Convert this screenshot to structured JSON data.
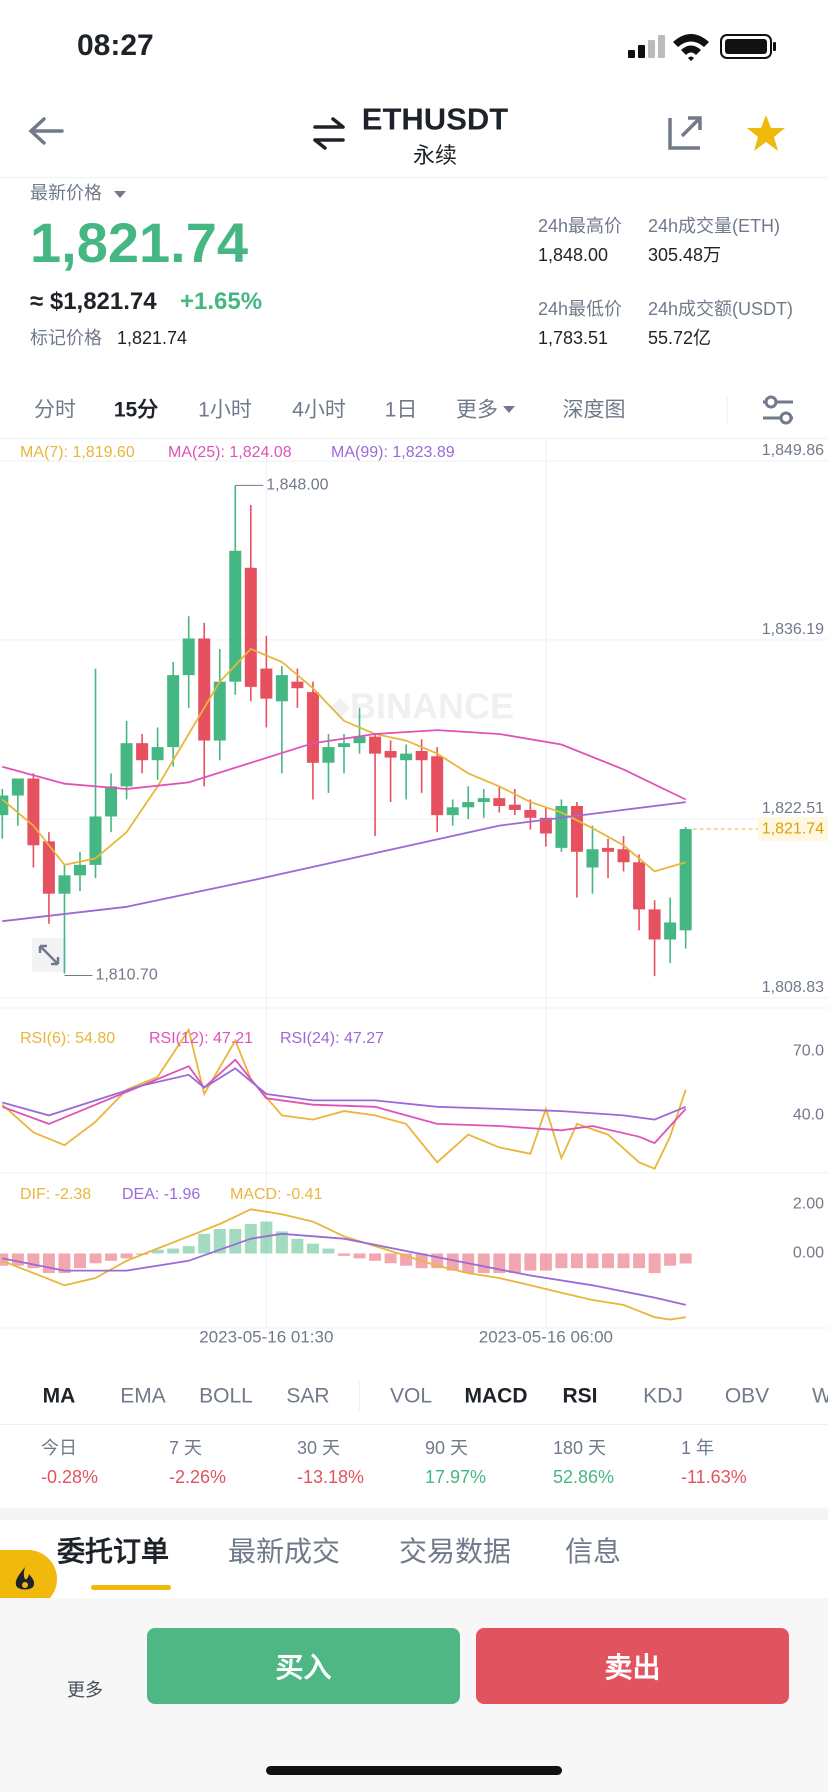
{
  "status": {
    "time": "08:27"
  },
  "header": {
    "symbol": "ETHUSDT",
    "subtitle": "永续"
  },
  "price": {
    "label": "最新价格",
    "last": "1,821.74",
    "usd": "≈ $1,821.74",
    "change": "+1.65%",
    "mark_label": "标记价格",
    "mark": "1,821.74"
  },
  "stats": [
    {
      "label": "24h最高价",
      "value": "1,848.00"
    },
    {
      "label": "24h成交量(ETH)",
      "value": "305.48万"
    },
    {
      "label": "24h最低价",
      "value": "1,783.51"
    },
    {
      "label": "24h成交额(USDT)",
      "value": "55.72亿"
    }
  ],
  "intervals": [
    "分时",
    "15分",
    "1小时",
    "4小时",
    "1日",
    "更多",
    "深度图"
  ],
  "watermark": "BINANCE",
  "chart_data": [
    {
      "type": "candlestick",
      "xlim": [
        -0.15,
        48.4
      ],
      "xticks": [
        {
          "value": 17,
          "label": "2023-05-16 01:30"
        },
        {
          "value": 35,
          "label": "2023-05-16 06:00"
        }
      ],
      "ylim": [
        1808.83,
        1849.86
      ],
      "yticks": [
        {
          "value": 1849.86,
          "label": "1,849.86"
        },
        {
          "value": 1836.19,
          "label": "1,836.19"
        },
        {
          "value": 1822.51,
          "label": "1,822.51"
        },
        {
          "value": 1808.83,
          "label": "1,808.83"
        }
      ],
      "grid": true,
      "up_color": "#45b782",
      "down_color": "#e6505f",
      "ohlc": [
        [
          1822.8,
          1824.8,
          1821.0,
          1824.3
        ],
        [
          1824.3,
          1825.6,
          1822.0,
          1825.6
        ],
        [
          1825.6,
          1826.0,
          1818.8,
          1820.5
        ],
        [
          1820.8,
          1821.5,
          1814.5,
          1816.8
        ],
        [
          1816.8,
          1819.0,
          1810.7,
          1818.2
        ],
        [
          1818.2,
          1820.0,
          1817.0,
          1819.0
        ],
        [
          1819.0,
          1834.0,
          1818.0,
          1822.7
        ],
        [
          1822.7,
          1826.0,
          1821.5,
          1825.0
        ],
        [
          1825.0,
          1830.0,
          1824.0,
          1828.3
        ],
        [
          1828.3,
          1829.0,
          1826.0,
          1827.0
        ],
        [
          1827.0,
          1829.5,
          1825.5,
          1828.0
        ],
        [
          1828.0,
          1834.5,
          1826.5,
          1833.5
        ],
        [
          1833.5,
          1838.0,
          1831.0,
          1836.3
        ],
        [
          1836.3,
          1837.5,
          1825.0,
          1828.5
        ],
        [
          1828.5,
          1835.5,
          1827.0,
          1833.0
        ],
        [
          1833.0,
          1848.0,
          1832.0,
          1843.0
        ],
        [
          1841.7,
          1846.5,
          1831.5,
          1832.6
        ],
        [
          1834.0,
          1836.5,
          1829.5,
          1831.7
        ],
        [
          1831.5,
          1834.2,
          1826.0,
          1833.5
        ],
        [
          1833.0,
          1834.0,
          1831.0,
          1832.5
        ],
        [
          1832.2,
          1833.0,
          1824.0,
          1826.8
        ],
        [
          1826.8,
          1829.0,
          1824.5,
          1828.0
        ],
        [
          1828.0,
          1829.0,
          1826.0,
          1828.3
        ],
        [
          1828.3,
          1831.0,
          1827.5,
          1828.8
        ],
        [
          1828.8,
          1829.0,
          1821.2,
          1827.5
        ],
        [
          1827.7,
          1828.5,
          1823.8,
          1827.2
        ],
        [
          1827.0,
          1828.2,
          1824.0,
          1827.5
        ],
        [
          1827.7,
          1828.6,
          1824.5,
          1827.0
        ],
        [
          1827.3,
          1828.0,
          1821.5,
          1822.8
        ],
        [
          1822.8,
          1824.0,
          1822.0,
          1823.4
        ],
        [
          1823.4,
          1825.0,
          1822.5,
          1823.8
        ],
        [
          1823.8,
          1824.8,
          1822.6,
          1824.1
        ],
        [
          1824.1,
          1825.0,
          1823.0,
          1823.5
        ],
        [
          1823.6,
          1824.8,
          1822.8,
          1823.2
        ],
        [
          1823.2,
          1824.0,
          1821.7,
          1822.6
        ],
        [
          1822.6,
          1823.4,
          1820.4,
          1821.4
        ],
        [
          1820.3,
          1824.0,
          1820.0,
          1823.5
        ],
        [
          1823.5,
          1823.8,
          1816.5,
          1820.0
        ],
        [
          1818.8,
          1822.0,
          1816.8,
          1820.2
        ],
        [
          1820.3,
          1821.0,
          1818.0,
          1820.0
        ],
        [
          1820.2,
          1821.2,
          1818.5,
          1819.2
        ],
        [
          1819.2,
          1819.8,
          1814.0,
          1815.6
        ],
        [
          1815.6,
          1816.3,
          1810.5,
          1813.3
        ],
        [
          1813.3,
          1816.5,
          1811.5,
          1814.6
        ],
        [
          1814.0,
          1821.9,
          1812.6,
          1821.74
        ]
      ],
      "series": [
        {
          "name": "MA(7): 1,819.60",
          "color": "#e9b63b",
          "x": [
            0,
            2,
            4,
            6,
            8,
            10,
            12,
            14,
            16,
            18,
            20,
            22,
            24,
            26,
            28,
            30,
            32,
            34,
            36,
            38,
            40,
            42,
            44
          ],
          "values": [
            1824,
            1822,
            1819,
            1819.5,
            1821.5,
            1825,
            1829,
            1833,
            1835.5,
            1834.5,
            1832.5,
            1830,
            1829,
            1828.5,
            1827.5,
            1826,
            1825,
            1823.8,
            1823,
            1821.8,
            1820.5,
            1818.5,
            1819.2
          ]
        },
        {
          "name": "MA(25): 1,824.08",
          "color": "#e052b8",
          "x": [
            0,
            4,
            8,
            12,
            16,
            20,
            24,
            28,
            32,
            36,
            40,
            44
          ],
          "values": [
            1826.5,
            1825.2,
            1824.8,
            1825.3,
            1826.8,
            1828.3,
            1829.0,
            1829.3,
            1829.0,
            1828.2,
            1826.3,
            1824.0
          ]
        },
        {
          "name": "MA(99): 1,823.89",
          "color": "#9b6ad6",
          "x": [
            0,
            8,
            16,
            24,
            32,
            40,
            44
          ],
          "values": [
            1814.7,
            1815.8,
            1817.8,
            1819.9,
            1822.0,
            1823.2,
            1823.8
          ]
        }
      ],
      "last": {
        "value": 1821.74,
        "label": "1,821.74"
      },
      "annotations": [
        {
          "x": 15,
          "value": 1848.0,
          "label": "1,848.00"
        },
        {
          "x": 4,
          "value": 1810.7,
          "label": "1,810.70"
        }
      ]
    },
    {
      "type": "line",
      "ylim": [
        13,
        87
      ],
      "yticks": [
        {
          "value": 70,
          "label": "70.0"
        },
        {
          "value": 40,
          "label": "40.0"
        }
      ],
      "series": [
        {
          "name": "RSI(6): 54.80",
          "color": "#e9b63b",
          "x": [
            0,
            2,
            4,
            6,
            8,
            10,
            12,
            13,
            15,
            16,
            18,
            20,
            22,
            24,
            26,
            28,
            30,
            32,
            34,
            35,
            36,
            37,
            39,
            41,
            42,
            43,
            44
          ],
          "values": [
            45,
            32,
            26,
            37,
            52,
            58,
            80,
            50,
            75,
            57,
            40,
            38,
            42,
            40,
            36,
            18,
            31,
            25,
            22,
            43,
            20,
            36,
            31,
            18,
            15,
            30,
            52
          ]
        },
        {
          "name": "RSI(12): 47.21",
          "color": "#e052b8",
          "x": [
            0,
            3,
            6,
            9,
            12,
            13,
            15,
            17,
            20,
            24,
            28,
            32,
            36,
            38,
            41,
            42,
            44
          ],
          "values": [
            44,
            36,
            45,
            54,
            63,
            53,
            66,
            48,
            45,
            44,
            36,
            35,
            33,
            35,
            30,
            27,
            43
          ]
        },
        {
          "name": "RSI(24): 47.27",
          "color": "#9b6ad6",
          "x": [
            0,
            3,
            6,
            9,
            12,
            13,
            15,
            17,
            20,
            24,
            28,
            32,
            36,
            40,
            42,
            44
          ],
          "values": [
            46,
            40,
            47,
            54,
            59,
            53,
            62,
            50,
            47,
            47,
            44,
            43,
            42,
            40,
            38,
            44
          ]
        }
      ]
    },
    {
      "type": "macd",
      "ylim": [
        -3,
        3.2
      ],
      "yticks": [
        {
          "value": 2,
          "label": "2.00"
        },
        {
          "value": 0,
          "label": "0.00"
        }
      ],
      "histogram": {
        "name": "MACD: -0.41",
        "color": "#e9b63b",
        "up_color": "#45b782",
        "down_color": "#e6505f",
        "values": [
          -0.5,
          -0.5,
          -0.6,
          -0.8,
          -0.8,
          -0.6,
          -0.4,
          -0.3,
          -0.2,
          -0.05,
          0.15,
          0.2,
          0.3,
          0.8,
          1.0,
          1.0,
          1.2,
          1.3,
          0.9,
          0.6,
          0.4,
          0.2,
          -0.1,
          -0.2,
          -0.3,
          -0.4,
          -0.5,
          -0.6,
          -0.6,
          -0.7,
          -0.8,
          -0.8,
          -0.8,
          -0.8,
          -0.7,
          -0.7,
          -0.6,
          -0.6,
          -0.6,
          -0.6,
          -0.6,
          -0.6,
          -0.8,
          -0.5,
          -0.41
        ]
      },
      "series": [
        {
          "name": "DIF: -2.38",
          "color": "#e9b63b",
          "x": [
            0,
            2,
            4,
            6,
            8,
            10,
            12,
            14,
            16,
            18,
            20,
            22,
            24,
            26,
            28,
            30,
            32,
            34,
            36,
            38,
            40,
            42,
            43,
            44
          ],
          "values": [
            -0.3,
            -0.8,
            -1.3,
            -1.0,
            -0.3,
            0.2,
            0.7,
            1.2,
            1.8,
            1.6,
            1.3,
            0.7,
            0.3,
            -0.1,
            -0.5,
            -0.8,
            -1.0,
            -1.3,
            -1.6,
            -1.9,
            -2.1,
            -2.6,
            -2.7,
            -2.6
          ]
        },
        {
          "name": "DEA: -1.96",
          "color": "#9b6ad6",
          "x": [
            0,
            4,
            8,
            12,
            16,
            18,
            22,
            26,
            30,
            34,
            38,
            42,
            44
          ],
          "values": [
            -0.2,
            -0.7,
            -0.7,
            -0.3,
            0.6,
            0.8,
            0.6,
            0.1,
            -0.4,
            -0.9,
            -1.3,
            -1.8,
            -2.1
          ]
        }
      ]
    }
  ],
  "indicators": [
    "MA",
    "EMA",
    "BOLL",
    "SAR",
    "VOL",
    "MACD",
    "RSI",
    "KDJ",
    "OBV",
    "W"
  ],
  "performance": [
    {
      "label": "今日",
      "value": "-0.28%"
    },
    {
      "label": "7 天",
      "value": "-2.26%"
    },
    {
      "label": "30 天",
      "value": "-13.18%"
    },
    {
      "label": "90 天",
      "value": "17.97%"
    },
    {
      "label": "180 天",
      "value": "52.86%"
    },
    {
      "label": "1 年",
      "value": "-11.63%"
    }
  ],
  "tabs": [
    "委托订单",
    "最新成交",
    "交易数据",
    "信息"
  ],
  "footer": {
    "more": "更多",
    "buy": "买入",
    "sell": "卖出"
  }
}
